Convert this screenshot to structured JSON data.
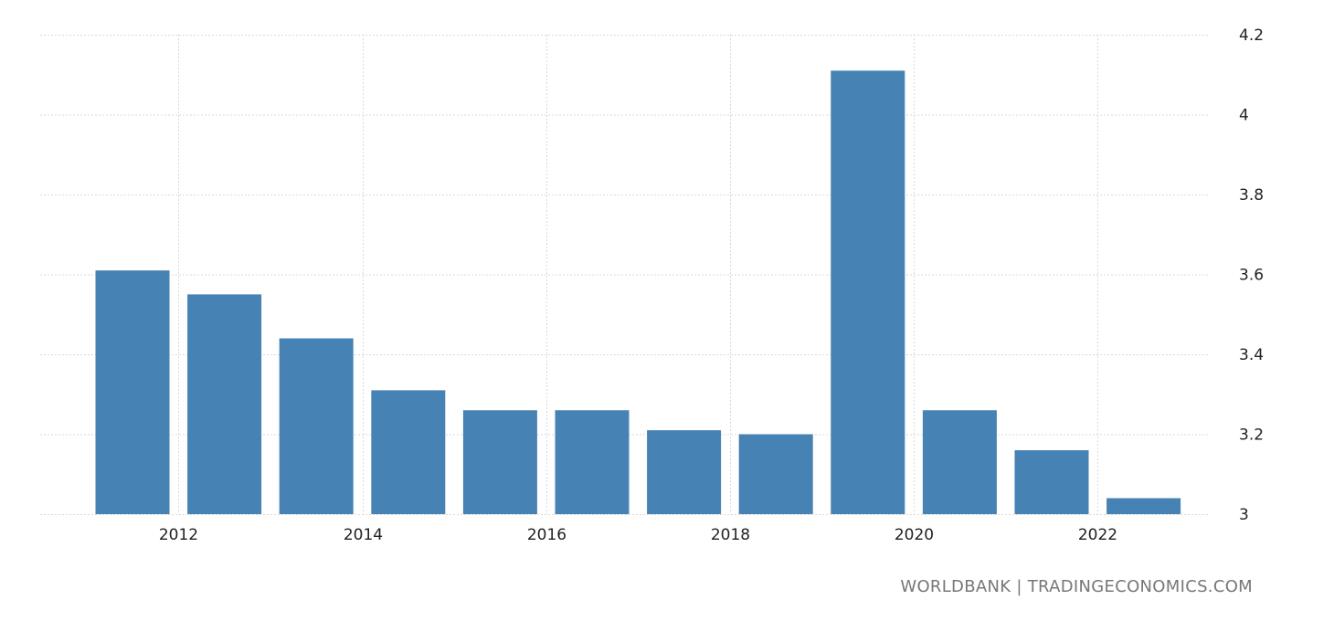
{
  "chart_data": {
    "type": "bar",
    "title": "",
    "xlabel": "",
    "ylabel": "",
    "categories": [
      "2012",
      "2013",
      "2014",
      "2015",
      "2016",
      "2017",
      "2018",
      "2019",
      "2020",
      "2021",
      "2022",
      "2023"
    ],
    "values": [
      3.61,
      3.55,
      3.44,
      3.31,
      3.26,
      3.26,
      3.21,
      3.2,
      4.11,
      3.26,
      3.16,
      3.04
    ],
    "x_tick_labels": [
      "2012",
      "2014",
      "2016",
      "2018",
      "2020",
      "2022"
    ],
    "y_tick_labels": [
      "3",
      "3.2",
      "3.4",
      "3.6",
      "3.8",
      "4",
      "4.2"
    ],
    "y_ticks": [
      3.0,
      3.2,
      3.4,
      3.6,
      3.8,
      4.0,
      4.2
    ],
    "ylim": [
      3.0,
      4.2
    ],
    "y_axis_side": "right",
    "grid": true,
    "bar_color": "#4682b4"
  },
  "credit": {
    "text": "WORLDBANK | TRADINGECONOMICS.COM"
  }
}
